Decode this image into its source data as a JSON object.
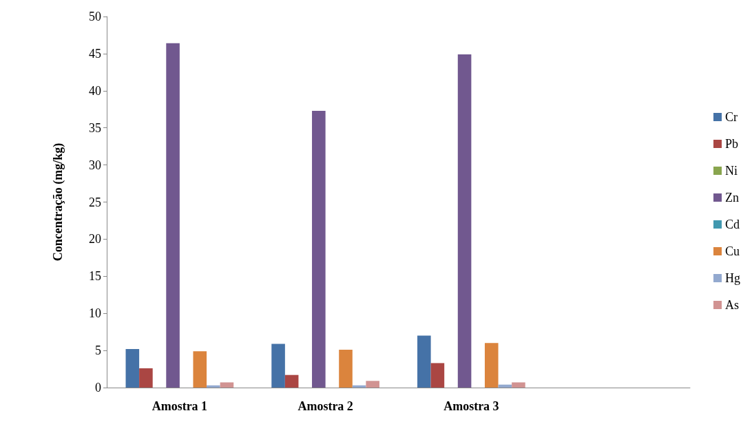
{
  "chart_data": {
    "type": "bar",
    "ylabel": "Concentração (mg/kg)",
    "categories": [
      "Amostra 1",
      "Amostra 2",
      "Amostra 3",
      null
    ],
    "series": [
      {
        "name": "Cr",
        "color": "#4572a7",
        "values": [
          5.2,
          5.9,
          7.0,
          null
        ]
      },
      {
        "name": "Pb",
        "color": "#aa4643",
        "values": [
          2.6,
          1.7,
          3.3,
          null
        ]
      },
      {
        "name": "Ni",
        "color": "#89a54e",
        "values": [
          0,
          0,
          0,
          null
        ]
      },
      {
        "name": "Zn",
        "color": "#71588f",
        "values": [
          46.4,
          37.3,
          44.9,
          null
        ]
      },
      {
        "name": "Cd",
        "color": "#4198af",
        "values": [
          0,
          0,
          0,
          null
        ]
      },
      {
        "name": "Cu",
        "color": "#db843d",
        "values": [
          4.9,
          5.1,
          6.0,
          null
        ]
      },
      {
        "name": "Hg",
        "color": "#93a9cf",
        "values": [
          0.3,
          0.3,
          0.4,
          null
        ]
      },
      {
        "name": "As",
        "color": "#d19392",
        "values": [
          0.7,
          0.9,
          0.7,
          null
        ]
      }
    ],
    "ylim": [
      0,
      50
    ],
    "yticks": [
      0,
      5,
      10,
      15,
      20,
      25,
      30,
      35,
      40,
      45,
      50
    ],
    "grid": false,
    "legend": "right"
  }
}
